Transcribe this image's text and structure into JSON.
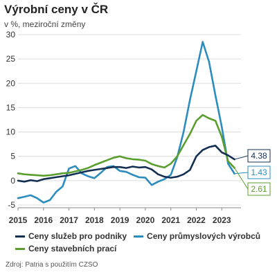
{
  "title": "Výrobní ceny v ČR",
  "subtitle": "v %, meziroční změny",
  "source": "Zdroj: Patria s použitím CZSO",
  "chart_data": {
    "type": "line",
    "title": "Výrobní ceny v ČR",
    "subtitle": "v %, meziroční změny",
    "xlim": [
      2015.0,
      2023.7
    ],
    "ylim": [
      -5,
      30
    ],
    "yticks": [
      -5,
      0,
      5,
      10,
      15,
      20,
      25,
      30
    ],
    "xticks": [
      2015,
      2016,
      2017,
      2018,
      2019,
      2020,
      2021,
      2022,
      2023
    ],
    "grid": true,
    "legend_position": "bottom",
    "series": [
      {
        "name": "Ceny služeb pro podniky",
        "color": "#142f54",
        "last_label": "4.38",
        "x": [
          2015.0,
          2015.25,
          2015.5,
          2015.75,
          2016.0,
          2016.25,
          2016.5,
          2016.75,
          2017.0,
          2017.25,
          2017.5,
          2017.75,
          2018.0,
          2018.25,
          2018.5,
          2018.75,
          2019.0,
          2019.25,
          2019.5,
          2019.75,
          2020.0,
          2020.25,
          2020.5,
          2020.75,
          2021.0,
          2021.25,
          2021.5,
          2021.75,
          2022.0,
          2022.25,
          2022.5,
          2022.75,
          2023.0,
          2023.25,
          2023.5
        ],
        "values": [
          0.0,
          -0.2,
          0.1,
          -0.1,
          0.3,
          0.5,
          0.7,
          0.9,
          1.1,
          1.4,
          1.7,
          2.0,
          2.2,
          2.4,
          2.6,
          2.8,
          2.8,
          2.6,
          2.9,
          2.7,
          2.8,
          2.3,
          1.3,
          0.8,
          0.6,
          0.8,
          1.3,
          2.2,
          5.0,
          6.3,
          6.9,
          7.2,
          5.8,
          5.2,
          4.38
        ]
      },
      {
        "name": "Ceny průmyslových výrobců",
        "color": "#2b8cbd",
        "last_label": "1.43",
        "x": [
          2015.0,
          2015.25,
          2015.5,
          2015.75,
          2016.0,
          2016.25,
          2016.5,
          2016.75,
          2017.0,
          2017.25,
          2017.5,
          2017.75,
          2018.0,
          2018.25,
          2018.5,
          2018.75,
          2019.0,
          2019.25,
          2019.5,
          2019.75,
          2020.0,
          2020.25,
          2020.5,
          2020.75,
          2021.0,
          2021.25,
          2021.5,
          2021.75,
          2022.0,
          2022.25,
          2022.5,
          2022.75,
          2023.0,
          2023.25,
          2023.5
        ],
        "values": [
          -3.6,
          -3.3,
          -3.0,
          -3.6,
          -4.5,
          -4.0,
          -2.3,
          -1.2,
          2.5,
          3.0,
          1.5,
          0.9,
          0.5,
          1.6,
          2.8,
          3.0,
          2.0,
          1.8,
          1.2,
          0.7,
          0.6,
          -0.9,
          -0.2,
          0.3,
          1.2,
          4.8,
          10.0,
          16.6,
          22.5,
          28.5,
          24.4,
          17.5,
          11.0,
          3.5,
          1.43
        ]
      },
      {
        "name": "Ceny stavebních prací",
        "color": "#5a9e2f",
        "last_label": "2.61",
        "x": [
          2015.0,
          2015.25,
          2015.5,
          2015.75,
          2016.0,
          2016.25,
          2016.5,
          2016.75,
          2017.0,
          2017.25,
          2017.5,
          2017.75,
          2018.0,
          2018.25,
          2018.5,
          2018.75,
          2019.0,
          2019.25,
          2019.5,
          2019.75,
          2020.0,
          2020.25,
          2020.5,
          2020.75,
          2021.0,
          2021.25,
          2021.5,
          2021.75,
          2022.0,
          2022.25,
          2022.5,
          2022.75,
          2023.0,
          2023.25,
          2023.5
        ],
        "values": [
          1.5,
          1.3,
          1.2,
          1.1,
          1.0,
          1.1,
          1.3,
          1.5,
          1.6,
          1.9,
          2.2,
          2.6,
          3.2,
          3.7,
          4.2,
          4.7,
          5.0,
          4.6,
          4.4,
          4.3,
          4.1,
          3.4,
          3.0,
          2.7,
          3.5,
          5.0,
          7.3,
          9.6,
          12.3,
          13.5,
          12.8,
          12.3,
          9.0,
          4.0,
          2.61
        ]
      }
    ]
  }
}
